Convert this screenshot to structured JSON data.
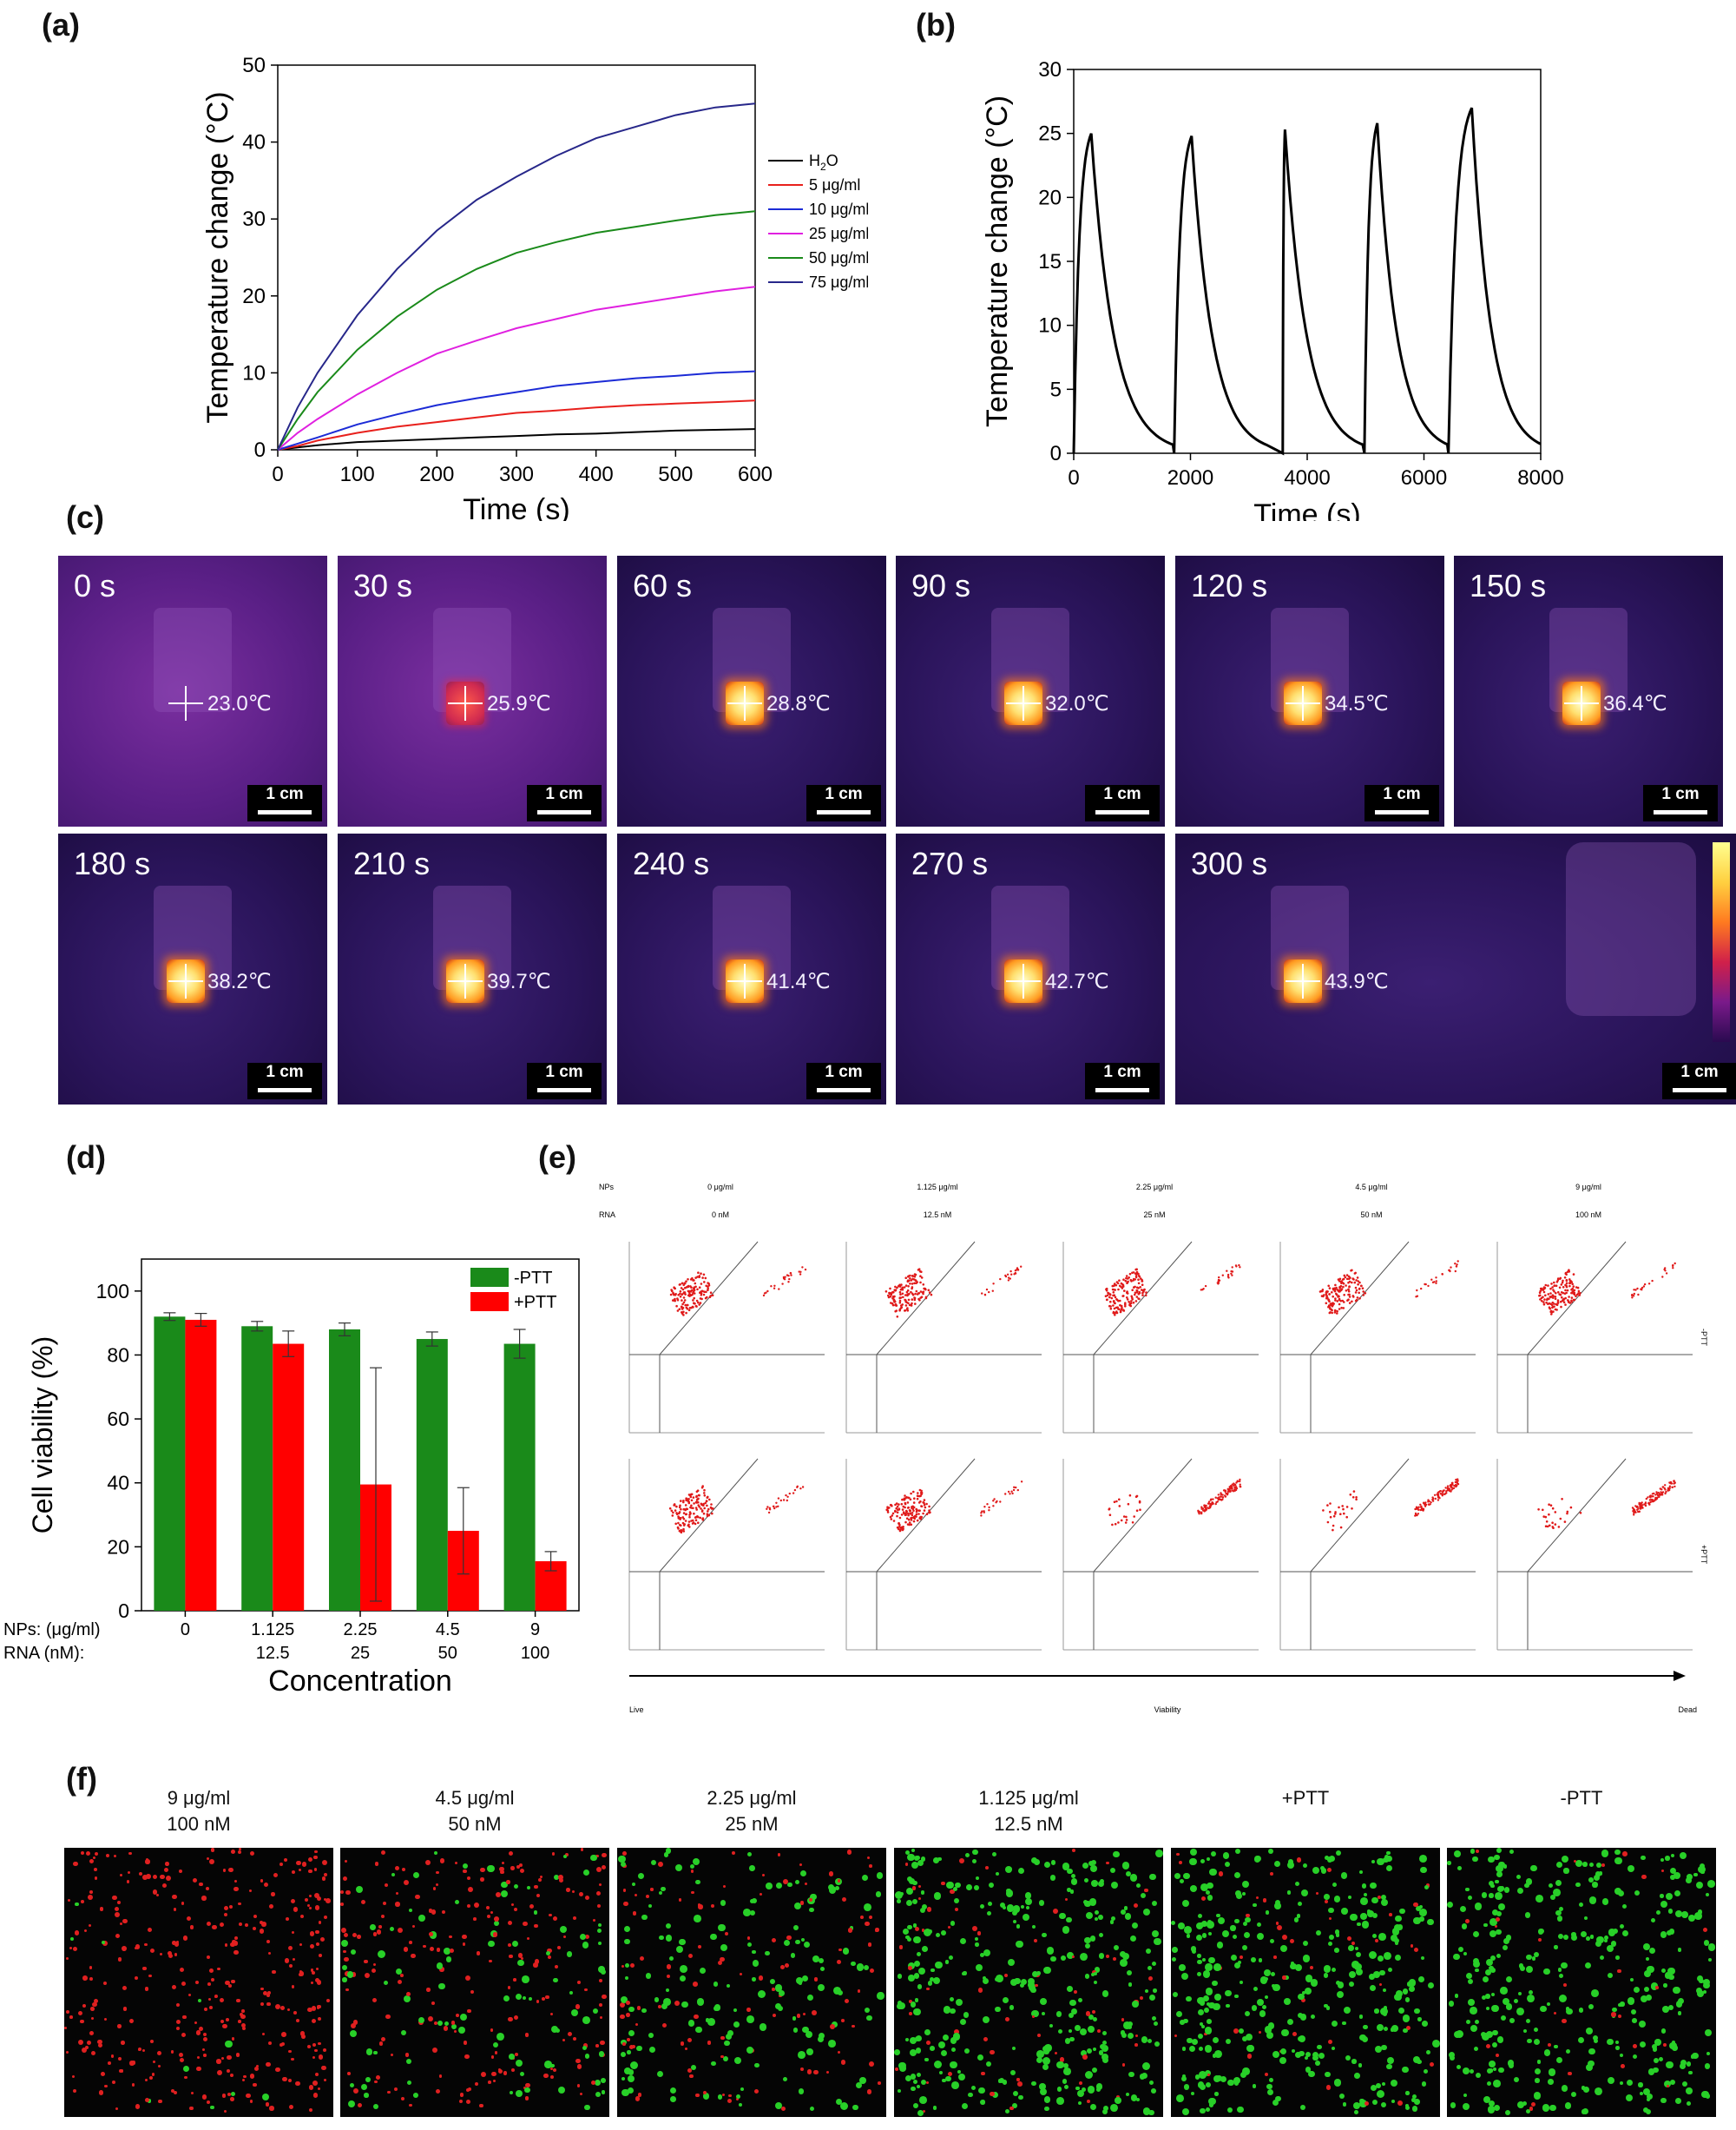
{
  "panels": {
    "a": "(a)",
    "b": "(b)",
    "c": "(c)",
    "d": "(d)",
    "e": "(e)",
    "f": "(f)"
  },
  "chart_data": [
    {
      "id": "a",
      "type": "line",
      "xlabel": "Time (s)",
      "ylabel": "Temperature change (°C)",
      "xlim": [
        0,
        600
      ],
      "ylim": [
        0,
        50
      ],
      "xticks": [
        0,
        100,
        200,
        300,
        400,
        500,
        600
      ],
      "yticks": [
        0,
        10,
        20,
        30,
        40,
        50
      ],
      "legend_position": "right",
      "x": [
        0,
        25,
        50,
        100,
        150,
        200,
        250,
        300,
        350,
        400,
        450,
        500,
        550,
        600
      ],
      "series": [
        {
          "name": "H2O",
          "name_main": "H",
          "name_sub": "2",
          "name_end": "O",
          "color": "#000000",
          "values": [
            0,
            0.3,
            0.6,
            1.0,
            1.2,
            1.4,
            1.6,
            1.8,
            2.0,
            2.1,
            2.3,
            2.5,
            2.6,
            2.7
          ]
        },
        {
          "name": "5 μg/ml",
          "color": "#e8201c",
          "values": [
            0,
            0.5,
            1.2,
            2.2,
            3.0,
            3.6,
            4.2,
            4.8,
            5.1,
            5.5,
            5.8,
            6.0,
            6.2,
            6.4
          ]
        },
        {
          "name": "10 μg/ml",
          "color": "#1c2bd6",
          "values": [
            0,
            0.8,
            1.6,
            3.3,
            4.6,
            5.8,
            6.7,
            7.5,
            8.3,
            8.8,
            9.3,
            9.6,
            10.0,
            10.2
          ]
        },
        {
          "name": "25 μg/ml",
          "color": "#e020e0",
          "values": [
            0,
            2.2,
            4.0,
            7.2,
            10.0,
            12.5,
            14.2,
            15.8,
            17.0,
            18.2,
            19.0,
            19.8,
            20.6,
            21.2
          ]
        },
        {
          "name": "50 μg/ml",
          "color": "#1a8a1a",
          "values": [
            0,
            4.0,
            7.5,
            13.0,
            17.3,
            20.8,
            23.5,
            25.6,
            27.0,
            28.2,
            29.0,
            29.8,
            30.5,
            31.0
          ]
        },
        {
          "name": "75 μg/ml",
          "color": "#27278a",
          "values": [
            0,
            5.5,
            10.0,
            17.5,
            23.5,
            28.5,
            32.5,
            35.5,
            38.2,
            40.5,
            42.0,
            43.5,
            44.5,
            45.0
          ]
        }
      ]
    },
    {
      "id": "b",
      "type": "line",
      "xlabel": "Time (s)",
      "ylabel": "Temperature change (°C)",
      "xlim": [
        0,
        8000
      ],
      "ylim": [
        0,
        30
      ],
      "xticks": [
        0,
        2000,
        4000,
        6000,
        8000
      ],
      "yticks": [
        0,
        5,
        10,
        15,
        20,
        25,
        30
      ],
      "cycles": [
        {
          "start": 0,
          "peak_time": 300,
          "peak": 25.0,
          "end": 1700
        },
        {
          "start": 1720,
          "peak_time": 2020,
          "peak": 24.8,
          "end": 3300
        },
        {
          "start": 3580,
          "peak_time": 3620,
          "peak": 25.3,
          "end": 4950
        },
        {
          "start": 4980,
          "peak_time": 5200,
          "peak": 25.8,
          "end": 6400
        },
        {
          "start": 6420,
          "peak_time": 6820,
          "peak": 27.0,
          "end": 8000
        }
      ],
      "color": "#000000"
    },
    {
      "id": "d",
      "type": "bar",
      "ylabel": "Cell viability (%)",
      "xlabel": "Concentration",
      "ylim": [
        0,
        110
      ],
      "yticks": [
        0,
        20,
        40,
        60,
        80,
        100
      ],
      "row_labels": [
        "NPs: (μg/ml)",
        "RNA (nM):"
      ],
      "categories": [
        "0",
        "1.125",
        "2.25",
        "4.5",
        "9"
      ],
      "categories_rna": [
        "",
        "12.5",
        "25",
        "50",
        "100"
      ],
      "series": [
        {
          "name": "-PTT",
          "color": "#1a8a1a",
          "values": [
            92,
            89,
            88,
            85,
            83.5
          ],
          "errors": [
            1.2,
            1.5,
            2.0,
            2.2,
            4.5
          ]
        },
        {
          "name": "+PTT",
          "color": "#ff0000",
          "values": [
            91,
            83.5,
            39.5,
            25,
            15.5
          ],
          "errors": [
            2.0,
            4.0,
            36.5,
            13.5,
            3.0
          ]
        }
      ]
    }
  ],
  "thermal": {
    "frames": [
      {
        "time": "0 s",
        "temp": "23.0℃"
      },
      {
        "time": "30 s",
        "temp": "25.9℃"
      },
      {
        "time": "60 s",
        "temp": "28.8℃"
      },
      {
        "time": "90 s",
        "temp": "32.0℃"
      },
      {
        "time": "120 s",
        "temp": "34.5℃"
      },
      {
        "time": "150 s",
        "temp": "36.4℃"
      },
      {
        "time": "180 s",
        "temp": "38.2℃"
      },
      {
        "time": "210 s",
        "temp": "39.7℃"
      },
      {
        "time": "240 s",
        "temp": "41.4℃"
      },
      {
        "time": "270 s",
        "temp": "42.7℃"
      },
      {
        "time": "300 s",
        "temp": "43.9℃"
      }
    ],
    "scale_bar": "1 cm"
  },
  "flow": {
    "row_label_nps": "NPs",
    "row_label_rna": "RNA",
    "columns": [
      {
        "nps": "0 μg/ml",
        "rna": "0 nM"
      },
      {
        "nps": "1.125 μg/ml",
        "rna": "12.5 nM"
      },
      {
        "nps": "2.25 μg/ml",
        "rna": "25 nM"
      },
      {
        "nps": "4.5 μg/ml",
        "rna": "50 nM"
      },
      {
        "nps": "9 μg/ml",
        "rna": "100 nM"
      }
    ],
    "rows": [
      "-PTT",
      "+PTT"
    ],
    "axis_left": "Live",
    "axis_mid": "Viability",
    "axis_right": "Dead"
  },
  "microscopy": {
    "columns": [
      {
        "line1": "9 μg/ml",
        "line2": "100 nM"
      },
      {
        "line1": "4.5 μg/ml",
        "line2": "50 nM"
      },
      {
        "line1": "2.25 μg/ml",
        "line2": "25 nM"
      },
      {
        "line1": "1.125 μg/ml",
        "line2": "12.5 nM"
      },
      {
        "line1": "+PTT",
        "line2": ""
      },
      {
        "line1": "-PTT",
        "line2": ""
      }
    ]
  }
}
